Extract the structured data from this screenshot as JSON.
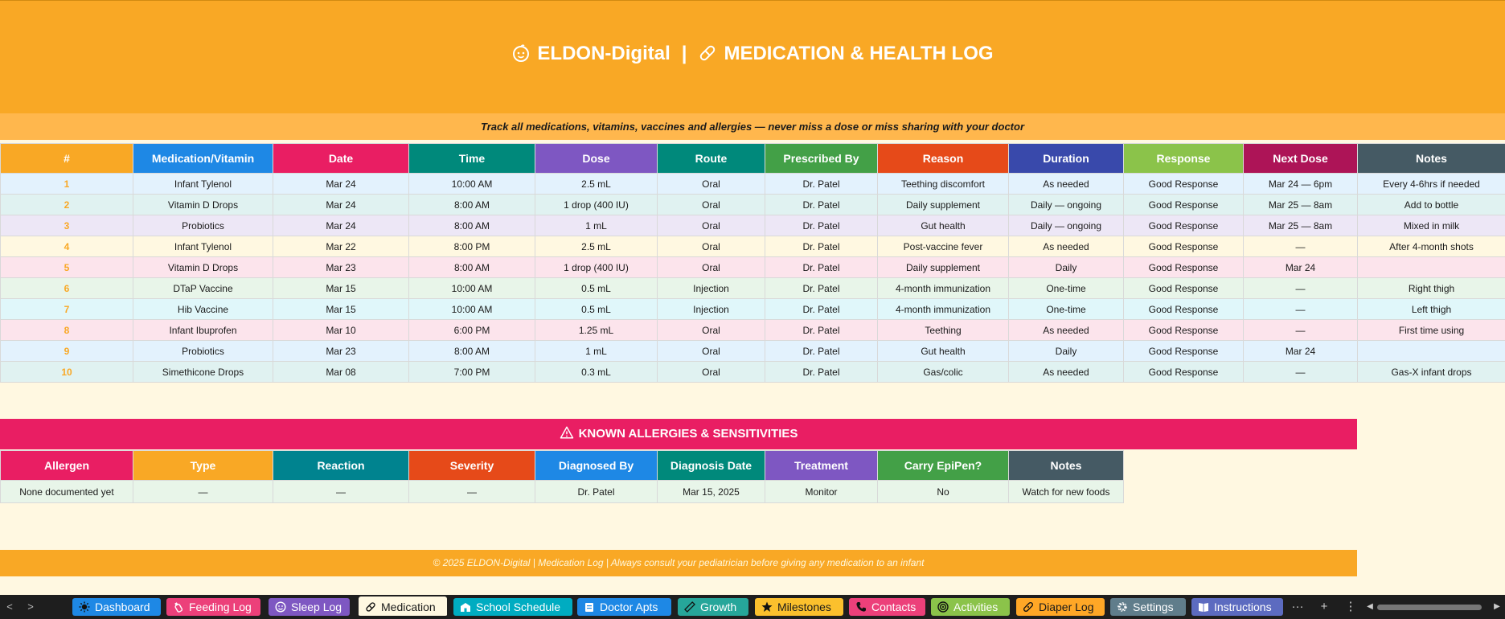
{
  "header": {
    "brand": "ELDON-Digital",
    "separator": "|",
    "title": "MEDICATION & HEALTH LOG",
    "subtitle": "Track all medications, vitamins, vaccines and allergies — never miss a dose or miss sharing with your doctor"
  },
  "medication_table": {
    "columns": [
      {
        "label": "#",
        "color": "#f9a825"
      },
      {
        "label": "Medication/Vitamin",
        "color": "#1e88e5"
      },
      {
        "label": "Date",
        "color": "#e91e63"
      },
      {
        "label": "Time",
        "color": "#00897b"
      },
      {
        "label": "Dose",
        "color": "#7e57c2"
      },
      {
        "label": "Route",
        "color": "#00897b"
      },
      {
        "label": "Prescribed By",
        "color": "#43a047"
      },
      {
        "label": "Reason",
        "color": "#e64a19"
      },
      {
        "label": "Duration",
        "color": "#3949ab"
      },
      {
        "label": "Response",
        "color": "#8bc34a"
      },
      {
        "label": "Next Dose",
        "color": "#ad1457"
      },
      {
        "label": "Notes",
        "color": "#455a64"
      }
    ],
    "rows": [
      {
        "bg": "#e3f2fd",
        "cells": [
          "1",
          "Infant Tylenol",
          "Mar 24",
          "10:00 AM",
          "2.5 mL",
          "Oral",
          "Dr. Patel",
          "Teething discomfort",
          "As needed",
          "Good Response",
          "Mar 24 — 6pm",
          "Every 4-6hrs if needed"
        ]
      },
      {
        "bg": "#e0f2f1",
        "cells": [
          "2",
          "Vitamin D Drops",
          "Mar 24",
          "8:00 AM",
          "1 drop (400 IU)",
          "Oral",
          "Dr. Patel",
          "Daily supplement",
          "Daily — ongoing",
          "Good Response",
          "Mar 25 — 8am",
          "Add to bottle"
        ]
      },
      {
        "bg": "#ede7f6",
        "cells": [
          "3",
          "Probiotics",
          "Mar 24",
          "8:00 AM",
          "1 mL",
          "Oral",
          "Dr. Patel",
          "Gut health",
          "Daily — ongoing",
          "Good Response",
          "Mar 25 — 8am",
          "Mixed in milk"
        ]
      },
      {
        "bg": "#fff8e1",
        "cells": [
          "4",
          "Infant Tylenol",
          "Mar 22",
          "8:00 PM",
          "2.5 mL",
          "Oral",
          "Dr. Patel",
          "Post-vaccine fever",
          "As needed",
          "Good Response",
          "—",
          "After 4-month shots"
        ]
      },
      {
        "bg": "#fce4ec",
        "cells": [
          "5",
          "Vitamin D Drops",
          "Mar 23",
          "8:00 AM",
          "1 drop (400 IU)",
          "Oral",
          "Dr. Patel",
          "Daily supplement",
          "Daily",
          "Good Response",
          "Mar 24",
          ""
        ]
      },
      {
        "bg": "#e8f5e9",
        "cells": [
          "6",
          "DTaP Vaccine",
          "Mar 15",
          "10:00 AM",
          "0.5 mL",
          "Injection",
          "Dr. Patel",
          "4-month immunization",
          "One-time",
          "Good Response",
          "—",
          "Right thigh"
        ]
      },
      {
        "bg": "#e0f7fa",
        "cells": [
          "7",
          "Hib Vaccine",
          "Mar 15",
          "10:00 AM",
          "0.5 mL",
          "Injection",
          "Dr. Patel",
          "4-month immunization",
          "One-time",
          "Good Response",
          "—",
          "Left thigh"
        ]
      },
      {
        "bg": "#fce4ec",
        "cells": [
          "8",
          "Infant Ibuprofen",
          "Mar 10",
          "6:00 PM",
          "1.25 mL",
          "Oral",
          "Dr. Patel",
          "Teething",
          "As needed",
          "Good Response",
          "—",
          "First time using"
        ]
      },
      {
        "bg": "#e3f2fd",
        "cells": [
          "9",
          "Probiotics",
          "Mar 23",
          "8:00 AM",
          "1 mL",
          "Oral",
          "Dr. Patel",
          "Gut health",
          "Daily",
          "Good Response",
          "Mar 24",
          ""
        ]
      },
      {
        "bg": "#e0f2f1",
        "cells": [
          "10",
          "Simethicone Drops",
          "Mar 08",
          "7:00 PM",
          "0.3 mL",
          "Oral",
          "Dr. Patel",
          "Gas/colic",
          "As needed",
          "Good Response",
          "—",
          "Gas-X infant drops"
        ]
      }
    ]
  },
  "allergies": {
    "title": "KNOWN ALLERGIES & SENSITIVITIES",
    "columns": [
      {
        "label": "Allergen",
        "color": "#e91e63"
      },
      {
        "label": "Type",
        "color": "#f9a825"
      },
      {
        "label": "Reaction",
        "color": "#00838f"
      },
      {
        "label": "Severity",
        "color": "#e64a19"
      },
      {
        "label": "Diagnosed By",
        "color": "#1e88e5"
      },
      {
        "label": "Diagnosis Date",
        "color": "#00897b"
      },
      {
        "label": "Treatment",
        "color": "#7e57c2"
      },
      {
        "label": "Carry EpiPen?",
        "color": "#43a047"
      },
      {
        "label": "Notes",
        "color": "#455a64"
      }
    ],
    "row": [
      "None documented yet",
      "—",
      "—",
      "—",
      "Dr. Patel",
      "Mar 15, 2025",
      "Monitor",
      "No",
      "Watch for new foods"
    ]
  },
  "footer": {
    "text": "© 2025 ELDON-Digital | Medication Log | Always consult your pediatrician before giving any medication to an infant"
  },
  "tabs": [
    {
      "label": "Dashboard",
      "icon": "sun-icon",
      "color": "#1e88e5",
      "active": false
    },
    {
      "label": "Feeding Log",
      "icon": "bottle-icon",
      "color": "#ec407a",
      "active": false
    },
    {
      "label": "Sleep Log",
      "icon": "moon-face-icon",
      "color": "#7e57c2",
      "active": false
    },
    {
      "label": "Medication",
      "icon": "pill-icon",
      "color": "#fff8e1",
      "active": true
    },
    {
      "label": "School Schedule",
      "icon": "school-icon",
      "color": "#00acc1",
      "active": false
    },
    {
      "label": "Doctor Apts",
      "icon": "clipboard-icon",
      "color": "#1e88e5",
      "active": false
    },
    {
      "label": "Growth",
      "icon": "ruler-icon",
      "color": "#26a69a",
      "active": false
    },
    {
      "label": "Milestones",
      "icon": "star-icon",
      "color": "#fbc02d",
      "active": false
    },
    {
      "label": "Contacts",
      "icon": "phone-icon",
      "color": "#ec407a",
      "active": false
    },
    {
      "label": "Activities",
      "icon": "target-icon",
      "color": "#8bc34a",
      "active": false
    },
    {
      "label": "Diaper Log",
      "icon": "bandage-icon",
      "color": "#ffa726",
      "active": false
    },
    {
      "label": "Settings",
      "icon": "gear-icon",
      "color": "#607d8b",
      "active": false
    },
    {
      "label": "Instructions",
      "icon": "book-icon",
      "color": "#5c6bc0",
      "active": false
    }
  ],
  "toolbar": {
    "prev": "<",
    "next": ">",
    "more": "···",
    "add": "+",
    "menu": "⋮"
  }
}
